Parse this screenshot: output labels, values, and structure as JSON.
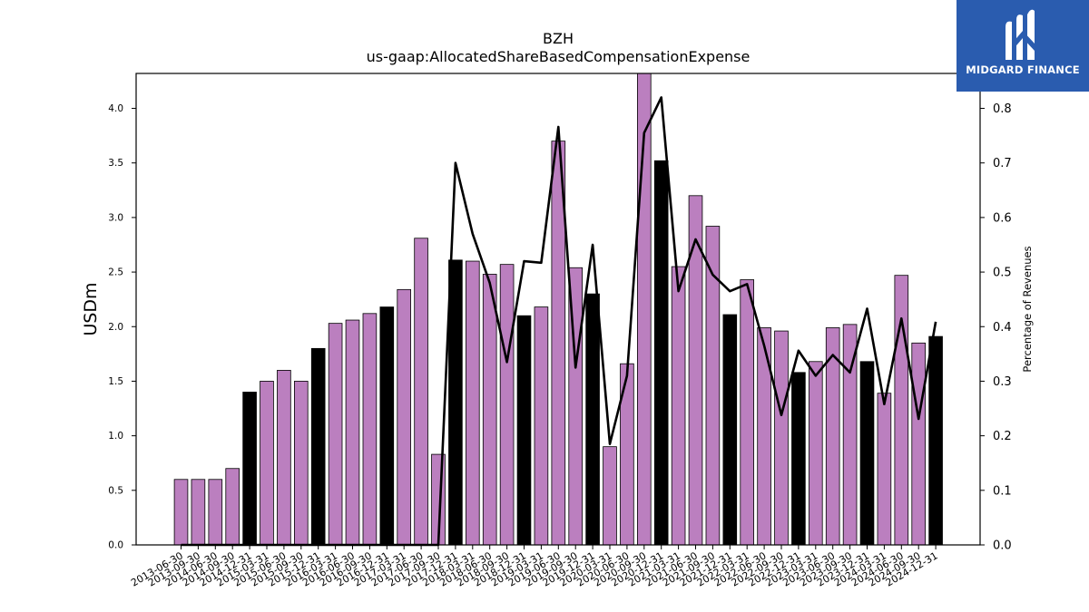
{
  "logo": {
    "text": "MIDGARD FINANCE",
    "mark_icon": "midgard-m-icon",
    "bg_color": "#2a5caf"
  },
  "chart_data": {
    "type": "bar",
    "title": "BZH",
    "subtitle": "us-gaap:AllocatedShareBasedCompensationExpense",
    "ylabel": "USDm",
    "y2label": "Percentage of Revenues",
    "ylim": [
      0,
      4.32
    ],
    "y2lim": [
      0,
      0.864
    ],
    "yticks": [
      0.0,
      0.5,
      1.0,
      1.5,
      2.0,
      2.5,
      3.0,
      3.5,
      4.0
    ],
    "y2ticks": [
      0.0,
      0.1,
      0.2,
      0.3,
      0.4,
      0.5,
      0.6,
      0.7,
      0.8
    ],
    "bar_color": "#bb7fbf",
    "highlight_color": "#000000",
    "line_color": "#000000",
    "categories": [
      "2013-06-30",
      "2013-09-30",
      "2014-06-30",
      "2014-09-30",
      "2014-12-31",
      "2015-03-31",
      "2015-06-30",
      "2015-09-30",
      "2015-12-31",
      "2016-03-31",
      "2016-06-30",
      "2016-09-30",
      "2016-12-31",
      "2017-03-31",
      "2017-06-30",
      "2017-09-30",
      "2017-12-31",
      "2018-03-31",
      "2018-06-30",
      "2018-09-30",
      "2018-12-31",
      "2019-03-31",
      "2019-06-30",
      "2019-09-30",
      "2019-12-31",
      "2020-03-31",
      "2020-06-30",
      "2020-09-30",
      "2020-12-31",
      "2021-03-31",
      "2021-06-30",
      "2021-09-30",
      "2021-12-31",
      "2022-03-31",
      "2022-06-30",
      "2022-09-30",
      "2022-12-31",
      "2023-03-31",
      "2023-06-30",
      "2023-09-30",
      "2023-12-31",
      "2024-03-31",
      "2024-06-30",
      "2024-09-30",
      "2024-12-31"
    ],
    "series": [
      {
        "type": "bar",
        "values": [
          0.6,
          0.6,
          0.6,
          0.7,
          1.4,
          1.5,
          1.6,
          1.5,
          1.8,
          2.03,
          2.06,
          2.12,
          2.18,
          2.34,
          2.81,
          0.83,
          2.61,
          2.6,
          2.48,
          2.57,
          2.1,
          2.18,
          3.7,
          2.54,
          2.3,
          0.9,
          1.66,
          4.33,
          3.52,
          2.55,
          3.2,
          2.92,
          2.11,
          2.43,
          1.99,
          1.96,
          1.58,
          1.68,
          1.99,
          2.02,
          1.68,
          1.39,
          2.47,
          1.85,
          1.91
        ],
        "highlight": [
          false,
          false,
          false,
          false,
          true,
          false,
          false,
          false,
          true,
          false,
          false,
          false,
          true,
          false,
          false,
          false,
          true,
          false,
          false,
          false,
          true,
          false,
          false,
          false,
          true,
          false,
          false,
          false,
          true,
          false,
          false,
          false,
          true,
          false,
          false,
          false,
          true,
          false,
          false,
          false,
          true,
          false,
          false,
          false,
          true
        ]
      },
      {
        "type": "line",
        "axis": "right",
        "values": [
          0.0,
          0.0,
          0.0,
          0.0,
          0.0,
          0.0,
          0.0,
          0.0,
          0.0,
          0.0,
          0.0,
          0.0,
          0.0,
          0.0,
          0.0,
          0.0,
          0.7,
          0.57,
          0.48,
          0.335,
          0.52,
          0.517,
          0.766,
          0.325,
          0.55,
          0.185,
          0.31,
          0.755,
          0.82,
          0.465,
          0.56,
          0.495,
          0.465,
          0.478,
          0.365,
          0.238,
          0.356,
          0.31,
          0.348,
          0.316,
          0.433,
          0.258,
          0.415,
          0.231,
          0.409
        ]
      }
    ]
  }
}
